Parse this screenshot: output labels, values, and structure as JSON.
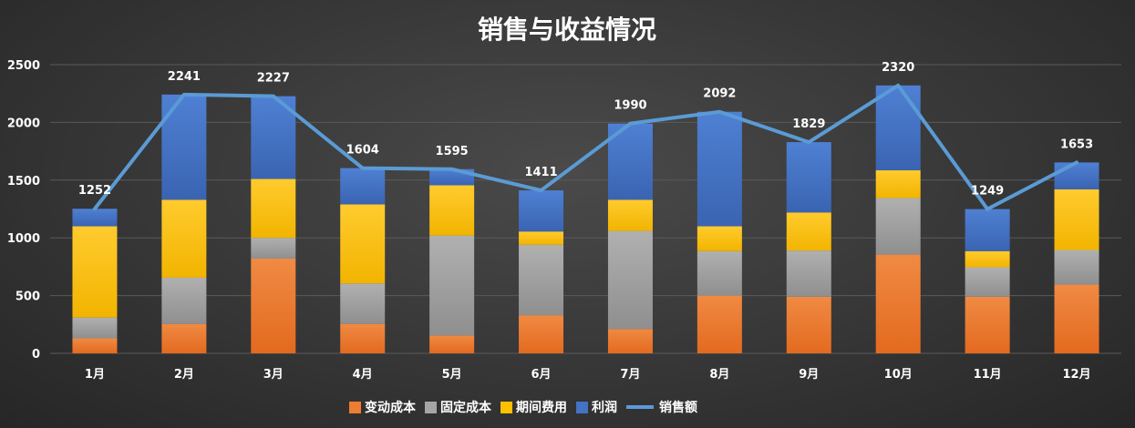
{
  "chart_data": {
    "type": "bar",
    "stacked": true,
    "title": "销售与收益情况",
    "categories": [
      "1月",
      "2月",
      "3月",
      "4月",
      "5月",
      "6月",
      "7月",
      "8月",
      "9月",
      "10月",
      "11月",
      "12月"
    ],
    "ylim": [
      0,
      2500
    ],
    "yticks": [
      0,
      500,
      1000,
      1500,
      2000,
      2500
    ],
    "grid": true,
    "legend_position": "bottom",
    "series": [
      {
        "name": "变动成本",
        "kind": "bar",
        "color": "#ed7d31",
        "values": [
          130,
          255,
          820,
          255,
          155,
          330,
          210,
          500,
          490,
          855,
          490,
          595
        ]
      },
      {
        "name": "固定成本",
        "kind": "bar",
        "color": "#a5a5a5",
        "values": [
          180,
          400,
          180,
          350,
          865,
          610,
          850,
          385,
          400,
          490,
          255,
          300
        ]
      },
      {
        "name": "期间费用",
        "kind": "bar",
        "color": "#ffc000",
        "values": [
          790,
          675,
          510,
          685,
          435,
          115,
          270,
          215,
          330,
          240,
          140,
          525
        ]
      },
      {
        "name": "利润",
        "kind": "bar",
        "color": "#4472c4",
        "values": [
          152,
          911,
          717,
          314,
          140,
          356,
          660,
          992,
          609,
          735,
          364,
          233
        ]
      },
      {
        "name": "销售额",
        "kind": "line",
        "color": "#5b9bd5",
        "values": [
          1252,
          2241,
          2227,
          1604,
          1595,
          1411,
          1990,
          2092,
          1829,
          2320,
          1249,
          1653
        ]
      }
    ]
  }
}
